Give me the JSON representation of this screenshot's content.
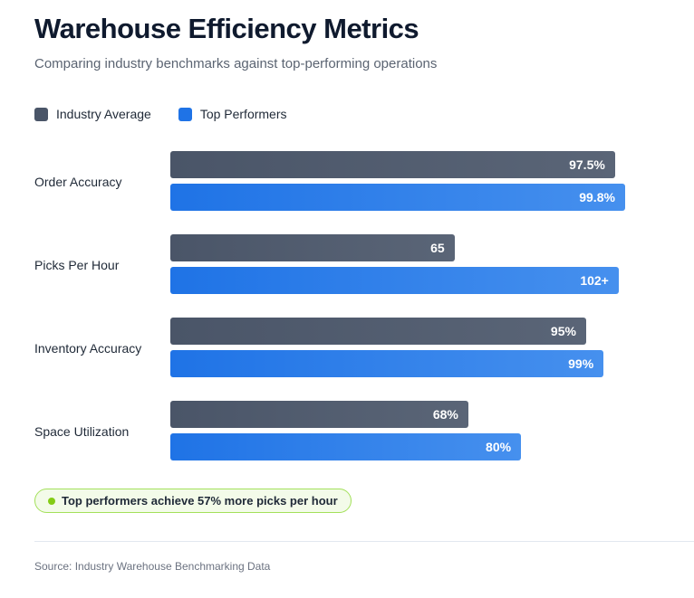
{
  "title": "Warehouse Efficiency Metrics",
  "subtitle": "Comparing industry benchmarks against top-performing operations",
  "colors": {
    "industry": "#4a5568",
    "top": "#1f73e6",
    "highlight": "#84cc16"
  },
  "chart_data": {
    "type": "bar",
    "orientation": "horizontal",
    "categories": [
      "Order Accuracy",
      "Picks Per Hour",
      "Inventory Accuracy",
      "Space Utilization"
    ],
    "series": [
      {
        "name": "Industry Average",
        "values": [
          97.5,
          65,
          95,
          68
        ],
        "labels": [
          "97.5%",
          "65",
          "95%",
          "68%"
        ],
        "fill": [
          0.97,
          0.62,
          0.907,
          0.65
        ]
      },
      {
        "name": "Top Performers",
        "values": [
          99.8,
          102,
          99,
          80
        ],
        "labels": [
          "99.8%",
          "102+",
          "99%",
          "80%"
        ],
        "fill": [
          0.992,
          0.978,
          0.945,
          0.765
        ]
      }
    ],
    "legend": "top-left",
    "grid": false
  },
  "callout": "Top performers achieve 57% more picks per hour",
  "source": "Source: Industry Warehouse Benchmarking Data"
}
